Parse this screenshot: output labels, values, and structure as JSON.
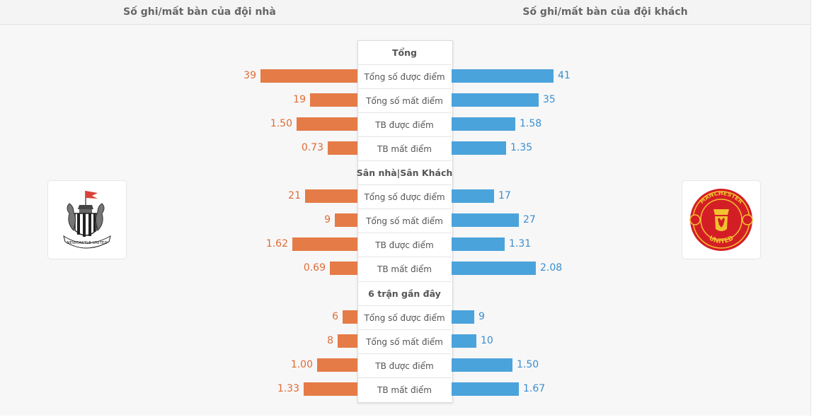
{
  "header": {
    "home_title": "Số ghi/mất bàn của đội nhà",
    "away_title": "Số ghi/mất bàn của đội khách"
  },
  "teams": {
    "home": {
      "logo_icon": "newcastle-united-crest-icon",
      "crest_text": "NEWCASTLE UNITED"
    },
    "away": {
      "logo_icon": "manchester-united-crest-icon",
      "crest_top": "MANCHESTER",
      "crest_bottom": "UNITED"
    }
  },
  "colors": {
    "home": "#e57b47",
    "away": "#4ba3db"
  },
  "chart_data": {
    "type": "bar",
    "orientation": "horizontal-diverging",
    "series": [
      {
        "name": "Số ghi/mất bàn của đội nhà"
      },
      {
        "name": "Số ghi/mất bàn của đội khách"
      }
    ],
    "groups": [
      {
        "title": "Tổng",
        "rows": [
          {
            "label": "Tổng số được điểm",
            "home": "39",
            "away": "41"
          },
          {
            "label": "Tổng số mất điểm",
            "home": "19",
            "away": "35"
          },
          {
            "label": "TB được điểm",
            "home": "1.50",
            "away": "1.58"
          },
          {
            "label": "TB mất điểm",
            "home": "0.73",
            "away": "1.35"
          }
        ]
      },
      {
        "title": "Sân nhà|Sân Khách",
        "rows": [
          {
            "label": "Tổng số được điểm",
            "home": "21",
            "away": "17"
          },
          {
            "label": "Tổng số mất điểm",
            "home": "9",
            "away": "27"
          },
          {
            "label": "TB được điểm",
            "home": "1.62",
            "away": "1.31"
          },
          {
            "label": "TB mất điểm",
            "home": "0.69",
            "away": "2.08"
          }
        ]
      },
      {
        "title": "6 trận gần đây",
        "rows": [
          {
            "label": "Tổng số được điểm",
            "home": "6",
            "away": "9"
          },
          {
            "label": "Tổng số mất điểm",
            "home": "8",
            "away": "10"
          },
          {
            "label": "TB được điểm",
            "home": "1.00",
            "away": "1.50"
          },
          {
            "label": "TB mất điểm",
            "home": "1.33",
            "away": "1.67"
          }
        ]
      }
    ]
  }
}
